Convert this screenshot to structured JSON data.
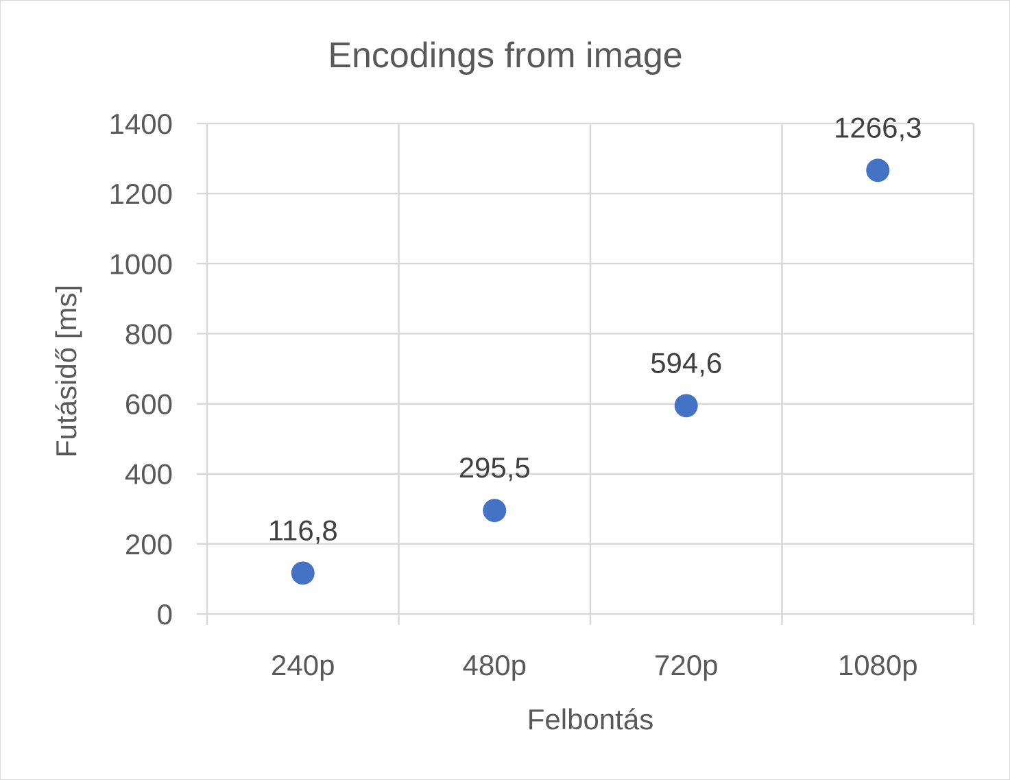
{
  "chart_data": {
    "type": "scatter",
    "title": "Encodings from image",
    "xlabel": "Felbontás",
    "ylabel": "Futásidő [ms]",
    "categories": [
      "240p",
      "480p",
      "720p",
      "1080p"
    ],
    "series": [
      {
        "values": [
          116.8,
          295.5,
          594.6,
          1266.3
        ]
      }
    ],
    "data_labels": [
      "116,8",
      "295,5",
      "594,6",
      "1266,3"
    ],
    "ylim": [
      0,
      1400
    ],
    "yticks": [
      0,
      200,
      400,
      600,
      800,
      1000,
      1200,
      1400
    ],
    "grid": true,
    "legend": "none",
    "marker_color": "#4472c4",
    "gridline_color": "#d9d9d9"
  }
}
